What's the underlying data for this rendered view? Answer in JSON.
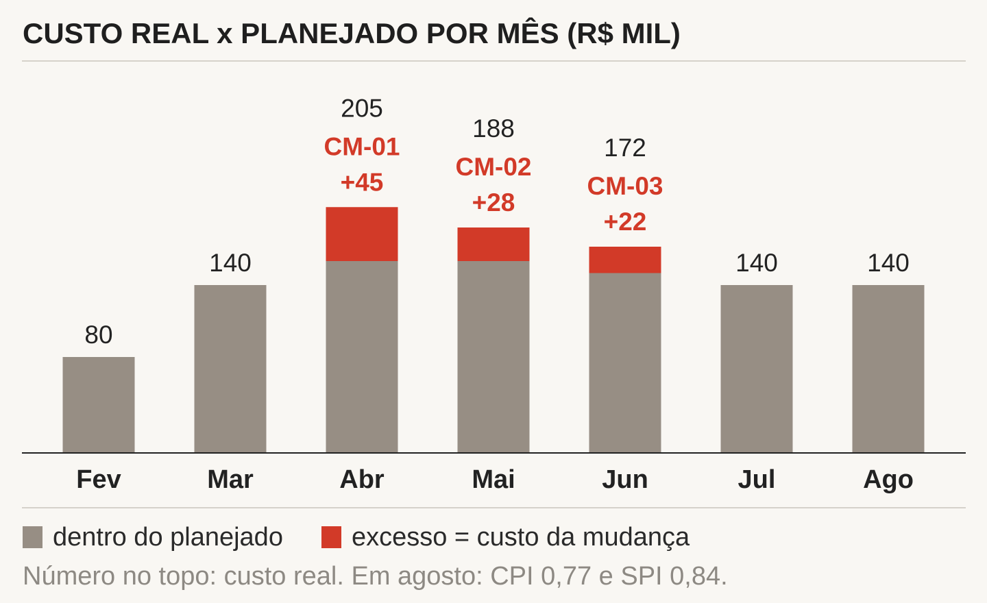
{
  "title": "CUSTO REAL x PLANEJADO POR MÊS (R$ MIL)",
  "colors": {
    "planned": "#978e84",
    "excess": "#d23a28",
    "background": "#f9f7f3",
    "axis": "#222222"
  },
  "legend": {
    "planned_label": "dentro do planejado",
    "excess_label": "excesso = custo da mudança"
  },
  "note": "Número no topo: custo real. Em agosto: CPI 0,77 e SPI 0,84.",
  "chart_data": {
    "type": "bar",
    "stacked": true,
    "categories": [
      "Fev",
      "Mar",
      "Abr",
      "Mai",
      "Jun",
      "Jul",
      "Ago"
    ],
    "series": [
      {
        "name": "dentro do planejado",
        "values": [
          80,
          140,
          160,
          160,
          150,
          140,
          140
        ]
      },
      {
        "name": "excesso = custo da mudança",
        "values": [
          0,
          0,
          45,
          28,
          22,
          0,
          0
        ]
      }
    ],
    "totals": [
      80,
      140,
      205,
      188,
      172,
      140,
      140
    ],
    "annotations": [
      {
        "category": "Abr",
        "code": "CM-01",
        "delta": "+45"
      },
      {
        "category": "Mai",
        "code": "CM-02",
        "delta": "+28"
      },
      {
        "category": "Jun",
        "code": "CM-03",
        "delta": "+22"
      }
    ],
    "title": "CUSTO REAL x PLANEJADO POR MÊS (R$ MIL)",
    "xlabel": "",
    "ylabel": "",
    "ylim": [
      0,
      205
    ],
    "grid": false,
    "legend_position": "bottom-left"
  }
}
